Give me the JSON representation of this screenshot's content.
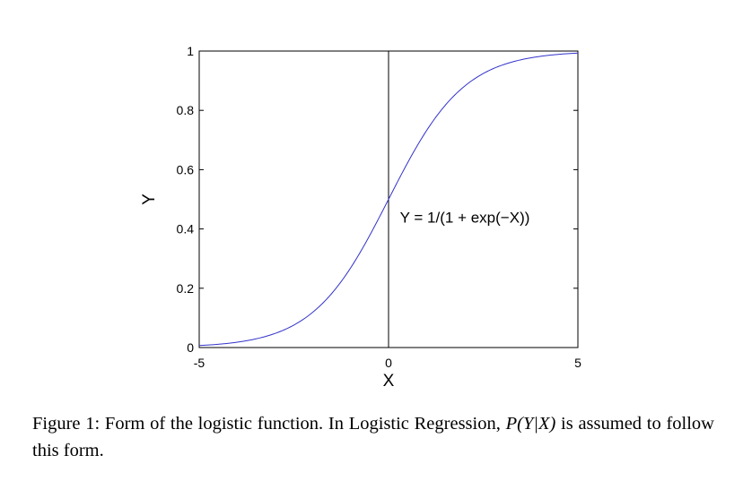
{
  "chart_data": {
    "type": "line",
    "title": "",
    "xlabel": "X",
    "ylabel": "Y",
    "xlim": [
      -5,
      5
    ],
    "ylim": [
      0,
      1
    ],
    "grid": false,
    "x_ticks": [
      {
        "value": -5,
        "label": "-5"
      },
      {
        "value": 0,
        "label": "0"
      },
      {
        "value": 5,
        "label": "5"
      }
    ],
    "y_ticks": [
      {
        "value": 0,
        "label": "0"
      },
      {
        "value": 0.2,
        "label": "0.2"
      },
      {
        "value": 0.4,
        "label": "0.4"
      },
      {
        "value": 0.6,
        "label": "0.6"
      },
      {
        "value": 0.8,
        "label": "0.8"
      },
      {
        "value": 1,
        "label": "1"
      }
    ],
    "series": [
      {
        "function": "1/(1+exp(-X))",
        "color": "#3333cc",
        "x": [
          -5,
          -4.5,
          -4,
          -3.5,
          -3,
          -2.5,
          -2,
          -1.5,
          -1,
          -0.5,
          0,
          0.5,
          1,
          1.5,
          2,
          2.5,
          3,
          3.5,
          4,
          4.5,
          5
        ],
        "values": [
          0.0067,
          0.011,
          0.018,
          0.029,
          0.047,
          0.076,
          0.119,
          0.182,
          0.269,
          0.378,
          0.5,
          0.622,
          0.731,
          0.818,
          0.881,
          0.924,
          0.953,
          0.971,
          0.982,
          0.989,
          0.9933
        ]
      }
    ],
    "vertical_line": {
      "x": 0
    },
    "annotation": {
      "text": "Y = 1/(1 + exp(−X))",
      "x": 0.3,
      "y": 0.44
    }
  },
  "caption": {
    "prefix": "Figure 1: Form of the logistic function. In Logistic Regression, ",
    "math": "P(Y|X)",
    "suffix": " is assumed to follow this form."
  }
}
